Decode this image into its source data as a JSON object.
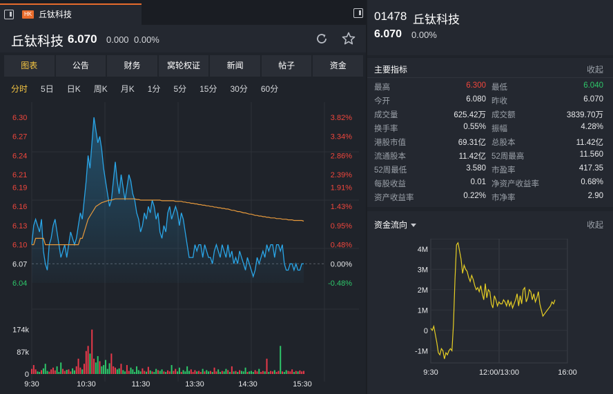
{
  "tab": {
    "badge": "HK",
    "title": "丘钛科技"
  },
  "stock": {
    "name": "丘钛科技",
    "price": "6.070",
    "change": "0.000",
    "pct": "0.00%"
  },
  "func_tabs": [
    "图表",
    "公告",
    "财务",
    "窝轮权证",
    "新闻",
    "帖子",
    "资金"
  ],
  "period_tabs": [
    "分时",
    "5日",
    "日K",
    "周K",
    "月K",
    "1分",
    "5分",
    "15分",
    "30分",
    "60分"
  ],
  "colors": {
    "up": "#f0463c",
    "down": "#2ec76a",
    "price_line": "#2aa6e8",
    "avg_line": "#e89a3c",
    "flow_line": "#e8d024",
    "accent": "#f5c542"
  },
  "chart_data": [
    {
      "type": "line",
      "price_axis": [
        "6.30",
        "6.27",
        "6.24",
        "6.21",
        "6.19",
        "6.16",
        "6.13",
        "6.10",
        "6.07",
        "6.04"
      ],
      "pct_axis": [
        "3.82%",
        "3.34%",
        "2.86%",
        "2.39%",
        "1.91%",
        "1.43%",
        "0.95%",
        "0.48%",
        "0.00%",
        "-0.48%"
      ],
      "volume_axis": [
        "174k",
        "87k",
        "0"
      ],
      "x_ticks": [
        "9:30",
        "10:30",
        "11:30",
        "13:30",
        "14:30",
        "15:30"
      ],
      "prev_close": 6.07,
      "ylim": [
        6.04,
        6.3
      ],
      "price": [
        6.1,
        6.13,
        6.14,
        6.13,
        6.12,
        6.14,
        6.09,
        6.07,
        6.06,
        6.1,
        6.11,
        6.13,
        6.14,
        6.12,
        6.1,
        6.08,
        6.09,
        6.1,
        6.08,
        6.1,
        6.12,
        6.11,
        6.1,
        6.11,
        6.13,
        6.15,
        6.14,
        6.17,
        6.2,
        6.24,
        6.22,
        6.26,
        6.3,
        6.28,
        6.26,
        6.27,
        6.25,
        6.22,
        6.2,
        6.18,
        6.16,
        6.17,
        6.2,
        6.23,
        6.2,
        6.18,
        6.21,
        6.19,
        6.17,
        6.19,
        6.21,
        6.2,
        6.18,
        6.17,
        6.15,
        6.14,
        6.12,
        6.13,
        6.15,
        6.14,
        6.16,
        6.15,
        6.17,
        6.16,
        6.14,
        6.15,
        6.12,
        6.11,
        6.13,
        6.12,
        6.15,
        6.16,
        6.14,
        6.15,
        6.16,
        6.15,
        6.13,
        6.15,
        6.14,
        6.12,
        6.1,
        6.08,
        6.08,
        6.08,
        6.1,
        6.09,
        6.1,
        6.1,
        6.08,
        6.1,
        6.09,
        6.08,
        6.08,
        6.07,
        6.09,
        6.1,
        6.09,
        6.08,
        6.1,
        6.09,
        6.08,
        6.1,
        6.08,
        6.09,
        6.07,
        6.08,
        6.07,
        6.09,
        6.08,
        6.07,
        6.06,
        6.08,
        6.07,
        6.06,
        6.05,
        6.06,
        6.08,
        6.07,
        6.08,
        6.09,
        6.08,
        6.1,
        6.09,
        6.1,
        6.1,
        6.08,
        6.1,
        6.1,
        6.09,
        6.1,
        6.07,
        6.06,
        6.06,
        6.07,
        6.07,
        6.06,
        6.07,
        6.06,
        6.06,
        6.07,
        6.07
      ],
      "avg": [
        6.1,
        6.1,
        6.11,
        6.11,
        6.11,
        6.11,
        6.11,
        6.1,
        6.1,
        6.1,
        6.1,
        6.1,
        6.1,
        6.1,
        6.1,
        6.1,
        6.1,
        6.1,
        6.1,
        6.1,
        6.1,
        6.1,
        6.1,
        6.1,
        6.1,
        6.11,
        6.11,
        6.12,
        6.13,
        6.14,
        6.145,
        6.15,
        6.155,
        6.16,
        6.162,
        6.164,
        6.166,
        6.167,
        6.168,
        6.169,
        6.17,
        6.17,
        6.171,
        6.172,
        6.172,
        6.172,
        6.172,
        6.172,
        6.172,
        6.172,
        6.172,
        6.172,
        6.172,
        6.172,
        6.171,
        6.171,
        6.17,
        6.17,
        6.17,
        6.17,
        6.17,
        6.17,
        6.17,
        6.17,
        6.17,
        6.17,
        6.17,
        6.169,
        6.169,
        6.169,
        6.169,
        6.169,
        6.169,
        6.169,
        6.168,
        6.168,
        6.168,
        6.168,
        6.167,
        6.167,
        6.166,
        6.166,
        6.165,
        6.165,
        6.164,
        6.164,
        6.163,
        6.163,
        6.162,
        6.162,
        6.161,
        6.161,
        6.16,
        6.16,
        6.159,
        6.159,
        6.158,
        6.158,
        6.157,
        6.157,
        6.156,
        6.156,
        6.155,
        6.154,
        6.154,
        6.153,
        6.152,
        6.152,
        6.151,
        6.15,
        6.15,
        6.149,
        6.148,
        6.148,
        6.147,
        6.146,
        6.146,
        6.145,
        6.145,
        6.144,
        6.144,
        6.143,
        6.143,
        6.142,
        6.142,
        6.142,
        6.141,
        6.141,
        6.141,
        6.14,
        6.14,
        6.14,
        6.139,
        6.139,
        6.139,
        6.138,
        6.138,
        6.138,
        6.138,
        6.138,
        6.137
      ],
      "volume": [
        20,
        35,
        18,
        10,
        8,
        15,
        22,
        40,
        12,
        9,
        18,
        25,
        14,
        30,
        8,
        45,
        20,
        12,
        16,
        18,
        10,
        22,
        14,
        30,
        60,
        25,
        18,
        40,
        90,
        110,
        80,
        174,
        60,
        45,
        70,
        50,
        30,
        35,
        55,
        20,
        42,
        80,
        30,
        25,
        18,
        22,
        40,
        15,
        10,
        35,
        12,
        25,
        18,
        8,
        30,
        15,
        10,
        22,
        12,
        9,
        28,
        14,
        10,
        8,
        20,
        15,
        12,
        18,
        10,
        8,
        14,
        10,
        35,
        12,
        20,
        10,
        25,
        8,
        15,
        10,
        30,
        12,
        18,
        8,
        15,
        10,
        12,
        8,
        20,
        10,
        15,
        10,
        12,
        8,
        25,
        10,
        18,
        8,
        12,
        10,
        20,
        15,
        8,
        30,
        10,
        12,
        8,
        15,
        12,
        10,
        25,
        8,
        10,
        12,
        8,
        15,
        10,
        20,
        8,
        12,
        10,
        60,
        8,
        12,
        10,
        15,
        8,
        12,
        110,
        10,
        8,
        15,
        12,
        10,
        18,
        8,
        12,
        10,
        14,
        10,
        12
      ],
      "volume_ylim": [
        0,
        200
      ]
    },
    {
      "type": "line",
      "title": "资金流向",
      "y_ticks": [
        "4M",
        "3M",
        "2M",
        "1M",
        "0",
        "-1M"
      ],
      "x_ticks": [
        "9:30",
        "12:00/13:00",
        "16:00"
      ],
      "ylim": [
        -1.6,
        4.5
      ],
      "values": [
        0.1,
        0.0,
        0.2,
        -0.2,
        -0.6,
        -1.1,
        -1.2,
        -0.9,
        -1.0,
        -1.4,
        -1.1,
        -1.2,
        -1.0,
        -0.9,
        -1.0,
        0.3,
        2.5,
        4.2,
        4.3,
        3.9,
        3.5,
        2.8,
        3.2,
        3.0,
        2.9,
        2.6,
        2.4,
        2.7,
        2.5,
        2.2,
        2.0,
        2.1,
        1.9,
        2.2,
        1.8,
        1.5,
        2.3,
        1.6,
        2.0,
        1.9,
        1.3,
        1.1,
        1.7,
        1.5,
        1.2,
        1.4,
        1.3,
        1.3,
        1.5,
        1.4,
        1.2,
        1.5,
        1.2,
        1.4,
        1.1,
        1.3,
        1.5,
        1.8,
        1.2,
        1.7,
        1.3,
        2.0,
        2.1,
        1.4,
        1.6,
        2.0,
        1.9,
        1.5,
        1.8,
        1.4,
        1.6,
        1.9,
        1.3,
        1.0,
        0.7,
        0.8,
        0.9,
        1.0,
        1.1,
        1.2,
        1.4,
        1.3,
        1.5
      ]
    }
  ],
  "right": {
    "code": "01478",
    "name": "丘钛科技",
    "price": "6.070",
    "pct": "0.00%",
    "metrics_title": "主要指标",
    "collapse": "收起",
    "flow_title": "资金流向",
    "metrics": [
      [
        "最高",
        "6.300",
        "最低",
        "6.040"
      ],
      [
        "今开",
        "6.080",
        "昨收",
        "6.070"
      ],
      [
        "成交量",
        "625.42万",
        "成交额",
        "3839.70万"
      ],
      [
        "换手率",
        "0.55%",
        "振幅",
        "4.28%"
      ],
      [
        "港股市值",
        "69.31亿",
        "总股本",
        "11.42亿"
      ],
      [
        "流通股本",
        "11.42亿",
        "52周最高",
        "11.560"
      ],
      [
        "52周最低",
        "3.580",
        "市盈率",
        "417.35"
      ],
      [
        "每股收益",
        "0.01",
        "净资产收益率",
        "0.68%"
      ],
      [
        "资产收益率",
        "0.22%",
        "市净率",
        "2.90"
      ]
    ]
  }
}
